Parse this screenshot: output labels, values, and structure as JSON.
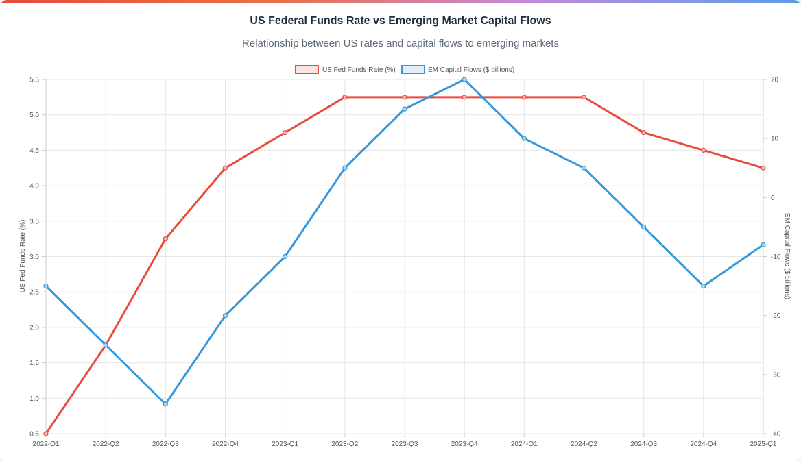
{
  "chart_data": {
    "type": "line",
    "title": "US Federal Funds Rate vs Emerging Market Capital Flows",
    "subtitle": "Relationship between US rates and capital flows to emerging markets",
    "categories": [
      "2022-Q1",
      "2022-Q2",
      "2022-Q3",
      "2022-Q4",
      "2023-Q1",
      "2023-Q2",
      "2023-Q3",
      "2023-Q4",
      "2024-Q1",
      "2024-Q2",
      "2024-Q3",
      "2024-Q4",
      "2025-Q1"
    ],
    "series": [
      {
        "name": "US Fed Funds Rate (%)",
        "axis": "left",
        "color": "#e74c3c",
        "values": [
          0.5,
          1.75,
          3.25,
          4.25,
          4.75,
          5.25,
          5.25,
          5.25,
          5.25,
          5.25,
          4.75,
          4.5,
          4.25
        ]
      },
      {
        "name": "EM Capital Flows ($ billions)",
        "axis": "right",
        "color": "#3498db",
        "values": [
          -15,
          -25,
          -35,
          -20,
          -10,
          5,
          15,
          20,
          10,
          5,
          -5,
          -15,
          -8
        ]
      }
    ],
    "ylabel": "US Fed Funds Rate (%)",
    "ylim": [
      0.5,
      5.5
    ],
    "yticks": [
      0.5,
      1.0,
      1.5,
      2.0,
      2.5,
      3.0,
      3.5,
      4.0,
      4.5,
      5.0,
      5.5
    ],
    "y2label": "EM Capital Flows ($ billions)",
    "y2lim": [
      -40,
      20
    ],
    "y2ticks": [
      -40,
      -30,
      -20,
      -10,
      0,
      10,
      20
    ],
    "grid": true,
    "legend": "top-center"
  }
}
